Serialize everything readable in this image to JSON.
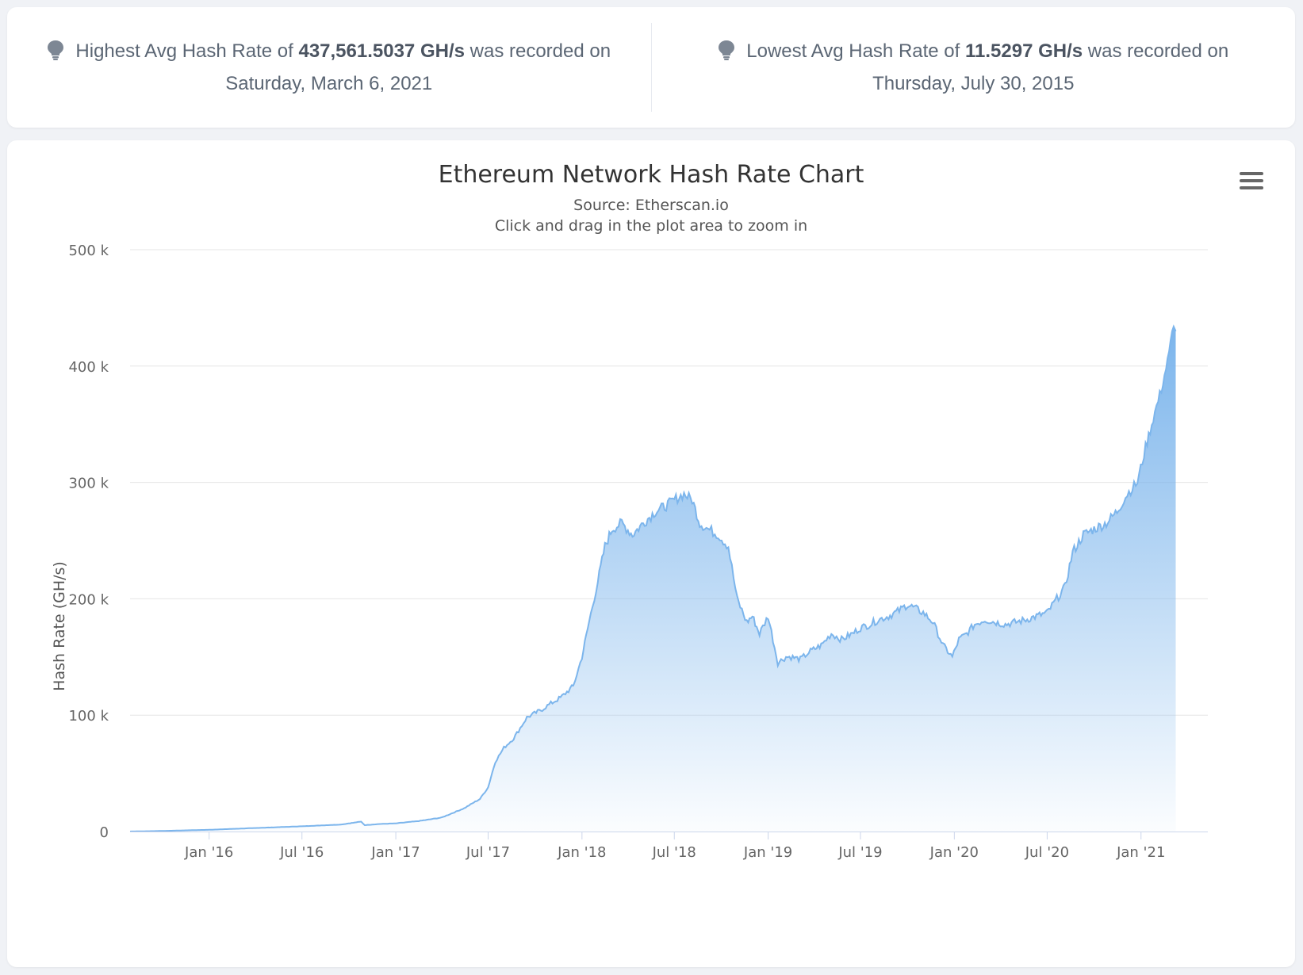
{
  "stats": {
    "highest": {
      "prefix": "Highest Avg Hash Rate of ",
      "value": "437,561.5037 GH/s",
      "suffix": " was recorded on Saturday, March 6, 2021",
      "icon": "lightbulb-icon"
    },
    "lowest": {
      "prefix": "Lowest Avg Hash Rate of ",
      "value": "11.5297 GH/s",
      "suffix": " was recorded on Thursday, July 30, 2015",
      "icon": "lightbulb-icon"
    }
  },
  "menu_icon": "hamburger-menu-icon",
  "chart_data": {
    "type": "area",
    "title": "Ethereum Network Hash Rate Chart",
    "subtitle": "Source: Etherscan.io",
    "subtitle2": "Click and drag in the plot area to zoom in",
    "ylabel": "Hash Rate (GH/s)",
    "xlabel": "",
    "ylim": [
      0,
      500000
    ],
    "yticks": [
      0,
      100000,
      200000,
      300000,
      400000,
      500000
    ],
    "ytick_labels": [
      "0",
      "100 k",
      "200 k",
      "300 k",
      "400 k",
      "500 k"
    ],
    "xlim": [
      "2015-07-30",
      "2021-05-12"
    ],
    "xticks": [
      "2016-01-01",
      "2016-07-01",
      "2017-01-01",
      "2017-07-01",
      "2018-01-01",
      "2018-07-01",
      "2019-01-01",
      "2019-07-01",
      "2020-01-01",
      "2020-07-01",
      "2021-01-01"
    ],
    "xtick_labels": [
      "Jan '16",
      "Jul '16",
      "Jan '17",
      "Jul '17",
      "Jan '18",
      "Jul '18",
      "Jan '19",
      "Jul '19",
      "Jan '20",
      "Jul '20",
      "Jan '21"
    ],
    "grid": true,
    "legend": "none",
    "color": "#7cb5ec",
    "series": [
      {
        "x": [
          "2015-07-30",
          "2015-10-01",
          "2016-01-01",
          "2016-04-01",
          "2016-07-01",
          "2016-09-15",
          "2016-10-25",
          "2016-11-01",
          "2016-12-01",
          "2017-01-01",
          "2017-02-15",
          "2017-04-01",
          "2017-05-15",
          "2017-06-15",
          "2017-07-01",
          "2017-07-15",
          "2017-08-01",
          "2017-08-20",
          "2017-09-15",
          "2017-10-15",
          "2017-11-01",
          "2017-11-20",
          "2017-12-15",
          "2018-01-01",
          "2018-01-15",
          "2018-02-01",
          "2018-02-15",
          "2018-03-01",
          "2018-03-20",
          "2018-04-10",
          "2018-05-01",
          "2018-05-25",
          "2018-06-15",
          "2018-07-01",
          "2018-07-20",
          "2018-08-05",
          "2018-08-20",
          "2018-09-05",
          "2018-09-25",
          "2018-10-15",
          "2018-11-01",
          "2018-11-20",
          "2018-12-01",
          "2018-12-15",
          "2019-01-01",
          "2019-01-20",
          "2019-02-05",
          "2019-02-15",
          "2019-03-05",
          "2019-03-25",
          "2019-04-15",
          "2019-05-05",
          "2019-05-25",
          "2019-06-15",
          "2019-07-01",
          "2019-07-20",
          "2019-08-05",
          "2019-08-25",
          "2019-09-15",
          "2019-10-01",
          "2019-10-15",
          "2019-11-01",
          "2019-11-20",
          "2019-12-10",
          "2019-12-28",
          "2020-01-10",
          "2020-01-25",
          "2020-02-10",
          "2020-03-01",
          "2020-03-20",
          "2020-04-10",
          "2020-05-01",
          "2020-05-20",
          "2020-06-10",
          "2020-07-01",
          "2020-07-20",
          "2020-08-05",
          "2020-08-20",
          "2020-09-10",
          "2020-10-01",
          "2020-10-25",
          "2020-11-15",
          "2020-12-05",
          "2020-12-25",
          "2021-01-10",
          "2021-01-25",
          "2021-02-10",
          "2021-02-25",
          "2021-03-06",
          "2021-03-10"
        ],
        "y": [
          12,
          500,
          1500,
          3000,
          4500,
          6000,
          8500,
          5500,
          6500,
          7000,
          9000,
          12000,
          20000,
          28000,
          38000,
          60000,
          72000,
          80000,
          98000,
          105000,
          110000,
          115000,
          125000,
          150000,
          180000,
          215000,
          245000,
          260000,
          265000,
          255000,
          265000,
          275000,
          280000,
          285000,
          290000,
          285000,
          265000,
          260000,
          255000,
          245000,
          200000,
          180000,
          185000,
          170000,
          185000,
          145000,
          150000,
          150000,
          148000,
          155000,
          160000,
          170000,
          165000,
          170000,
          175000,
          178000,
          182000,
          185000,
          190000,
          195000,
          192000,
          188000,
          180000,
          160000,
          150000,
          165000,
          170000,
          178000,
          182000,
          180000,
          178000,
          180000,
          182000,
          185000,
          188000,
          200000,
          210000,
          240000,
          255000,
          260000,
          265000,
          275000,
          290000,
          300000,
          330000,
          355000,
          380000,
          410000,
          437561,
          430000
        ]
      }
    ]
  }
}
